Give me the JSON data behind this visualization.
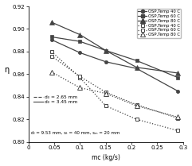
{
  "xlabel": "mᴄ (kg/s)",
  "ylabel": "η",
  "xlim": [
    0,
    0.3
  ],
  "ylim": [
    0.8,
    0.92
  ],
  "xticks": [
    0,
    0.05,
    0.1,
    0.15,
    0.2,
    0.25,
    0.3
  ],
  "yticks": [
    0.8,
    0.82,
    0.84,
    0.86,
    0.88,
    0.9,
    0.92
  ],
  "solid_series": [
    {
      "label": "OSP,Temp 40 C",
      "marker": "o",
      "x": [
        0.045,
        0.1,
        0.15,
        0.21,
        0.29
      ],
      "y": [
        0.8905,
        0.879,
        0.871,
        0.865,
        0.845
      ]
    },
    {
      "label": "OSP,Temp 60 C",
      "marker": "s",
      "x": [
        0.045,
        0.1,
        0.15,
        0.21,
        0.29
      ],
      "y": [
        0.893,
        0.889,
        0.881,
        0.872,
        0.857
      ]
    },
    {
      "label": "OSP,Temp 80 C",
      "marker": "^",
      "x": [
        0.045,
        0.1,
        0.15,
        0.21,
        0.29
      ],
      "y": [
        0.906,
        0.895,
        0.881,
        0.866,
        0.861
      ]
    }
  ],
  "dotted_series": [
    {
      "label": "OSP,Temp 40 C",
      "marker": "s",
      "x": [
        0.045,
        0.1,
        0.15,
        0.21,
        0.29
      ],
      "y": [
        0.88,
        0.857,
        0.832,
        0.82,
        0.81
      ]
    },
    {
      "label": "OSP,Temp 60 C",
      "marker": "s",
      "x": [
        0.045,
        0.1,
        0.15,
        0.21,
        0.29
      ],
      "y": [
        0.876,
        0.858,
        0.844,
        0.833,
        0.821
      ]
    },
    {
      "label": "OSP,Temp 80 C",
      "marker": "^",
      "x": [
        0.045,
        0.1,
        0.15,
        0.21,
        0.29
      ],
      "y": [
        0.862,
        0.848,
        0.843,
        0.832,
        0.822
      ]
    }
  ],
  "color": "#444444",
  "annotation": "dₗ = 9.53 mm, sₜ = 40 mm, sₘ = 20 mm",
  "wire_labels": [
    "d₀ = 2.65 mm",
    "d₀ = 3.45 mm"
  ]
}
